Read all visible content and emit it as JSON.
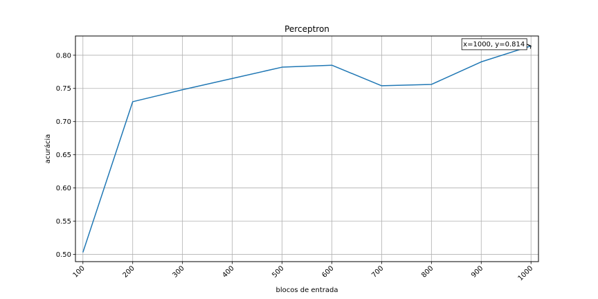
{
  "chart_data": {
    "type": "line",
    "title": "Perceptron",
    "xlabel": "blocos de entrada",
    "ylabel": "acurácia",
    "x": [
      100,
      200,
      300,
      400,
      500,
      600,
      700,
      800,
      900,
      1000
    ],
    "series": [
      {
        "values": [
          0.503,
          0.73,
          0.748,
          0.765,
          0.782,
          0.785,
          0.754,
          0.756,
          0.79,
          0.814
        ],
        "color": "#1f77b4"
      }
    ],
    "xticks": [
      "100",
      "200",
      "300",
      "400",
      "500",
      "600",
      "700",
      "800",
      "900",
      "1000"
    ],
    "yticks": [
      "0.50",
      "0.55",
      "0.60",
      "0.65",
      "0.70",
      "0.75",
      "0.80"
    ],
    "xlim": [
      85,
      1015
    ],
    "ylim": [
      0.489,
      0.829
    ],
    "grid": true,
    "annotation": {
      "text": "x=1000, y=0.814",
      "x": 1000,
      "y": 0.814
    }
  }
}
